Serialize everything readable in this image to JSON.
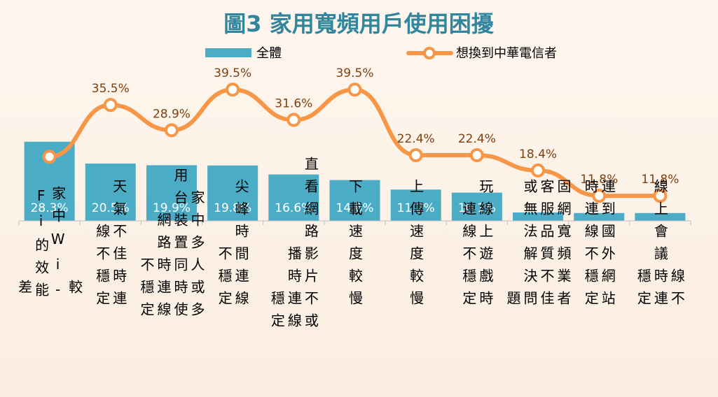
{
  "chart_data": {
    "type": "bar",
    "title": "圖3 家用寬頻用戶使用困擾",
    "legend_position": "top",
    "grid": false,
    "ylim": [
      0,
      45
    ],
    "colors": {
      "bar": "#4bacc6",
      "line": "#f79646",
      "title": "#31859c",
      "bar_label": "#ffffff",
      "line_label": "#7f3f0f"
    },
    "categories": [
      {
        "columns": [
          "差",
          "Fi的效能",
          "家中Wi-",
          "較"
        ]
      },
      {
        "columns": [
          "線不穩定",
          "天氣不佳時連"
        ]
      },
      {
        "columns": [
          "不穩定",
          "網路時連線",
          "用台裝置同時使",
          "家中多人或多"
        ]
      },
      {
        "columns": [
          "不穩定",
          "尖峰時間連線"
        ]
      },
      {
        "columns": [
          "穩定",
          "播時連線",
          "直看網路影片不或"
        ]
      },
      {
        "columns": [
          "下載速度較慢"
        ]
      },
      {
        "columns": [
          "上傳速度較慢"
        ]
      },
      {
        "columns": [
          "連線不穩定",
          "玩線上遊戲時"
        ]
      },
      {
        "columns": [
          "題",
          "或無法解決問",
          "客服品質不佳",
          "固網寬頻業者"
        ]
      },
      {
        "columns": [
          "時連線不穩定",
          "連到國外網站"
        ]
      },
      {
        "columns": [
          "穩定",
          "線上會議時連",
          "線不"
        ]
      }
    ],
    "series": [
      {
        "name": "全體",
        "type": "bar",
        "values": [
          28.3,
          20.5,
          19.9,
          19.8,
          16.6,
          14.6,
          11.2,
          10.1,
          3.0,
          2.8,
          2.8
        ],
        "labels": [
          "28.3%",
          "20.5%",
          "19.9%",
          "19.8%",
          "16.6%",
          "14.6%",
          "11.2%",
          "10.1%",
          "",
          "",
          ""
        ]
      },
      {
        "name": "想換到中華電信者",
        "type": "line",
        "values": [
          22.0,
          35.5,
          28.9,
          39.5,
          31.6,
          39.5,
          22.4,
          22.4,
          18.4,
          11.8,
          11.8
        ],
        "labels": [
          "",
          "35.5%",
          "28.9%",
          "39.5%",
          "31.6%",
          "39.5%",
          "22.4%",
          "22.4%",
          "18.4%",
          "11.8%",
          "11.8%"
        ]
      }
    ]
  }
}
